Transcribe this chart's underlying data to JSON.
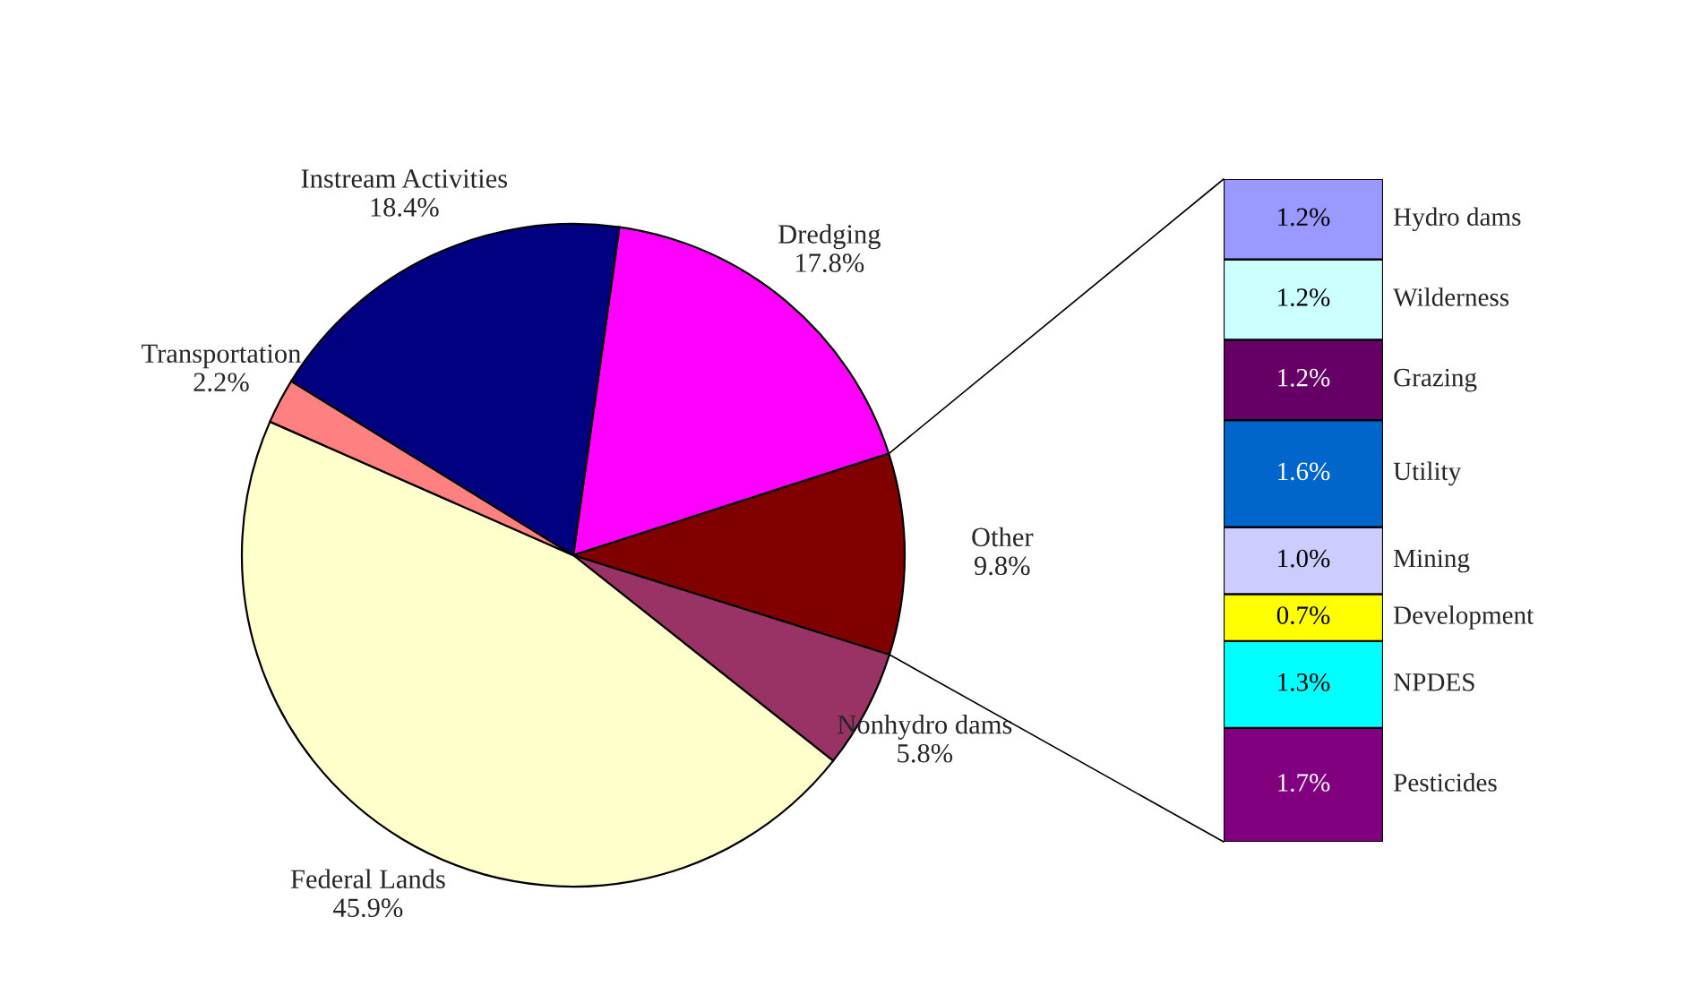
{
  "chart_data": [
    {
      "type": "pie",
      "categories": [
        "Dredging",
        "Other",
        "Nonhydro dams",
        "Federal Lands",
        "Transportation",
        "Instream Activities"
      ],
      "values": [
        17.8,
        9.8,
        5.8,
        45.9,
        2.2,
        18.4
      ],
      "value_labels": [
        "17.8%",
        "9.8%",
        "5.8%",
        "45.9%",
        "2.2%",
        "18.4%"
      ],
      "colors": [
        "#ff00ff",
        "#800000",
        "#993366",
        "#ffffcc",
        "#ff8080",
        "#000080"
      ]
    },
    {
      "type": "bar",
      "stacked": true,
      "categories": [
        null
      ],
      "series": [
        {
          "name": "Pesticides",
          "color": "#800080",
          "values": [
            1.7
          ],
          "value_labels": [
            "1.7%"
          ]
        },
        {
          "name": "NPDES",
          "color": "#00ffff",
          "values": [
            1.3
          ],
          "value_labels": [
            "1.3%"
          ]
        },
        {
          "name": "Development",
          "color": "#ffff00",
          "values": [
            0.7
          ],
          "value_labels": [
            "0.7%"
          ]
        },
        {
          "name": "Mining",
          "color": "#ccccff",
          "values": [
            1.0
          ],
          "value_labels": [
            "1.0%"
          ]
        },
        {
          "name": "Utility",
          "color": "#0066cc",
          "values": [
            1.6
          ],
          "value_labels": [
            "1.6%"
          ]
        },
        {
          "name": "Grazing",
          "color": "#660066",
          "values": [
            1.2
          ],
          "value_labels": [
            "1.2%"
          ]
        },
        {
          "name": "Wilderness",
          "color": "#ccffff",
          "values": [
            1.2
          ],
          "value_labels": [
            "1.2%"
          ]
        },
        {
          "name": "Hydro dams",
          "color": "#9999ff",
          "values": [
            1.2
          ],
          "value_labels": [
            "1.2%"
          ]
        }
      ]
    }
  ]
}
